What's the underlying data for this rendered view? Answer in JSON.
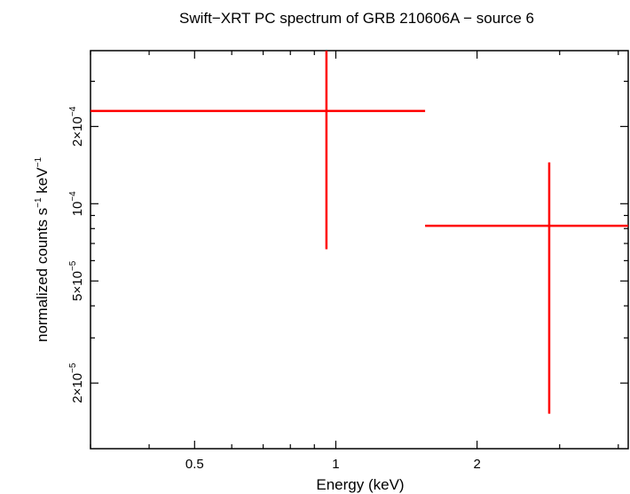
{
  "chart_data": {
    "type": "scatter",
    "title": "Swift−XRT PC spectrum of GRB 210606A − source 6",
    "xlabel": "Energy (keV)",
    "ylabel": {
      "base": "normalized counts s",
      "sup1": "−1",
      "middle": " keV",
      "sup2": "−1"
    },
    "xscale": "log",
    "yscale": "log",
    "xlim": [
      0.3,
      4.2
    ],
    "ylim": [
      1.11e-05,
      0.000395
    ],
    "x_ticks": [
      {
        "value": 0.5,
        "label": "0.5"
      },
      {
        "value": 1,
        "label": "1"
      },
      {
        "value": 2,
        "label": "2"
      }
    ],
    "y_ticks": [
      {
        "value": 2e-05,
        "mantissa": "2×10",
        "exp": "−5"
      },
      {
        "value": 5e-05,
        "mantissa": "5×10",
        "exp": "−5"
      },
      {
        "value": 0.0001,
        "mantissa": "10",
        "exp": "−4"
      },
      {
        "value": 0.0002,
        "mantissa": "2×10",
        "exp": "−4"
      }
    ],
    "color": "#ff0000",
    "series": [
      {
        "points": [
          {
            "x": 0.955,
            "y": 0.00023,
            "x_lo": 0.3,
            "x_hi": 1.55,
            "y_lo": 6.65e-05,
            "y_hi": 0.000395
          },
          {
            "x": 2.85,
            "y": 8.2e-05,
            "x_lo": 1.55,
            "x_hi": 4.2,
            "y_lo": 1.52e-05,
            "y_hi": 0.000145
          }
        ]
      }
    ]
  }
}
